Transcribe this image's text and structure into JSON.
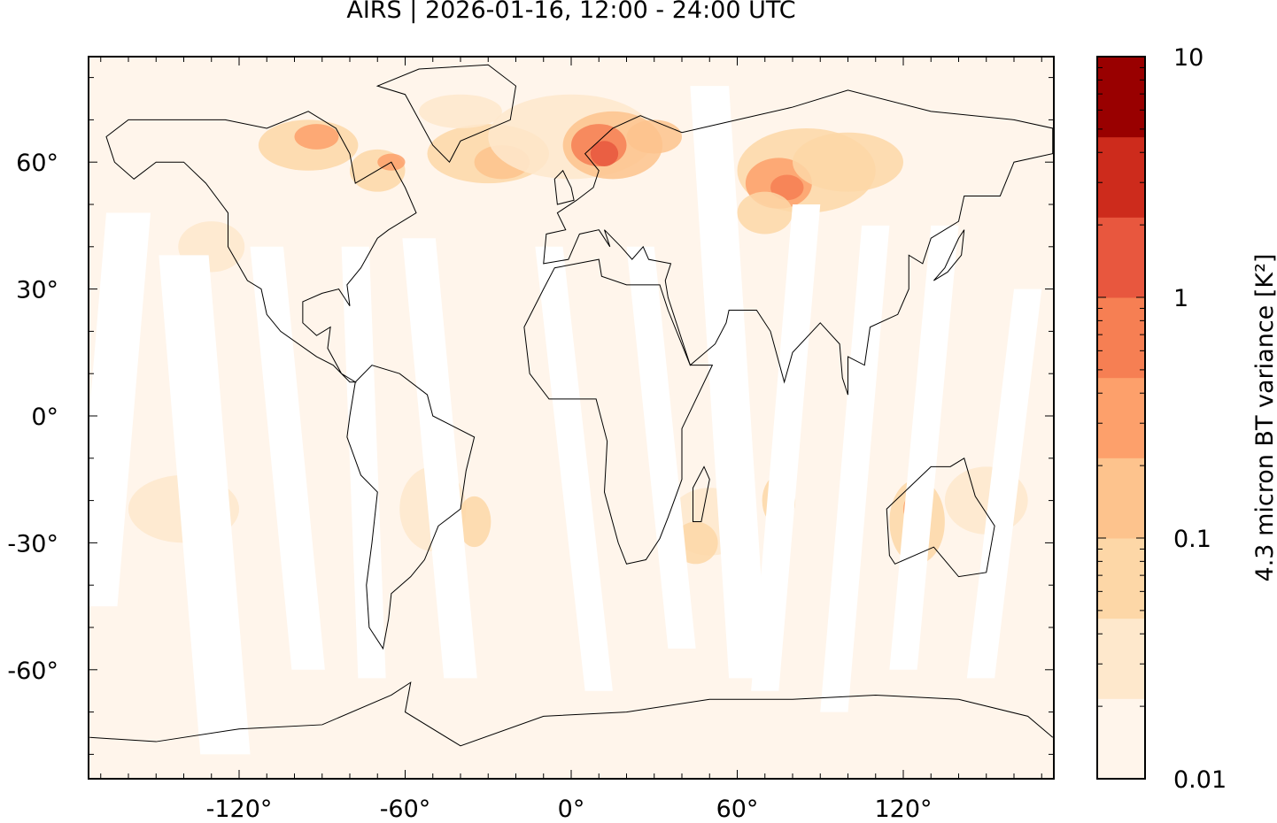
{
  "title": "AIRS | 2026-01-16, 12:00 - 24:00 UTC",
  "map": {
    "lon_ticks": [
      {
        "value": -120,
        "label": "-120°"
      },
      {
        "value": -60,
        "label": "-60°"
      },
      {
        "value": 0,
        "label": "0°"
      },
      {
        "value": 60,
        "label": "60°"
      },
      {
        "value": 120,
        "label": "120°"
      }
    ],
    "lat_ticks": [
      {
        "value": 60,
        "label": "60°"
      },
      {
        "value": 30,
        "label": "30°"
      },
      {
        "value": 0,
        "label": "0°"
      },
      {
        "value": -30,
        "label": "-30°"
      },
      {
        "value": -60,
        "label": "-60°"
      }
    ]
  },
  "colorbar": {
    "label": "4.3 micron BT variance [K²]",
    "tick_labels": [
      {
        "value": 10,
        "label": "10"
      },
      {
        "value": 1,
        "label": "1"
      },
      {
        "value": 0.1,
        "label": "0.1"
      },
      {
        "value": 0.01,
        "label": "0.01"
      }
    ],
    "colors": [
      "#fff5eb",
      "#fee8cc",
      "#fdd7a7",
      "#fdc38d",
      "#fda06b",
      "#f67f53",
      "#e8573e",
      "#cd2b1c",
      "#990000"
    ]
  }
}
